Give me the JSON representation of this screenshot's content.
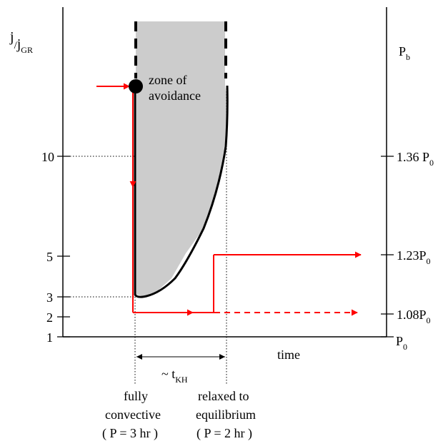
{
  "left_axis": {
    "label_main": "j",
    "label_sub1": "/",
    "label_main2": "j",
    "label_sub2": "GR",
    "ticks": [
      "1",
      "2",
      "3",
      "5",
      "10"
    ]
  },
  "right_axis": {
    "label": "P",
    "label_sub": "b",
    "ticks": [
      {
        "main": "P",
        "sub": "0",
        "prefix": ""
      },
      {
        "main": "1.08P",
        "sub": "0",
        "prefix": ""
      },
      {
        "main": "1.23P",
        "sub": "0",
        "prefix": ""
      },
      {
        "main": "1.36 P",
        "sub": "0",
        "prefix": ""
      }
    ]
  },
  "zone_label_line1": "zone of",
  "zone_label_line2": "avoidance",
  "x_axis_label": "time",
  "interval_label": "~ t",
  "interval_sub": "KH",
  "left_marker": {
    "line1": "fully",
    "line2": "convective",
    "line3": "( P = 3 hr )"
  },
  "right_marker": {
    "line1": "relaxed to",
    "line2": "equilibrium",
    "line3": "( P = 2 hr )"
  },
  "colors": {
    "zone_fill": "#cccccc",
    "track": "#ff0000",
    "axis": "#000000"
  }
}
